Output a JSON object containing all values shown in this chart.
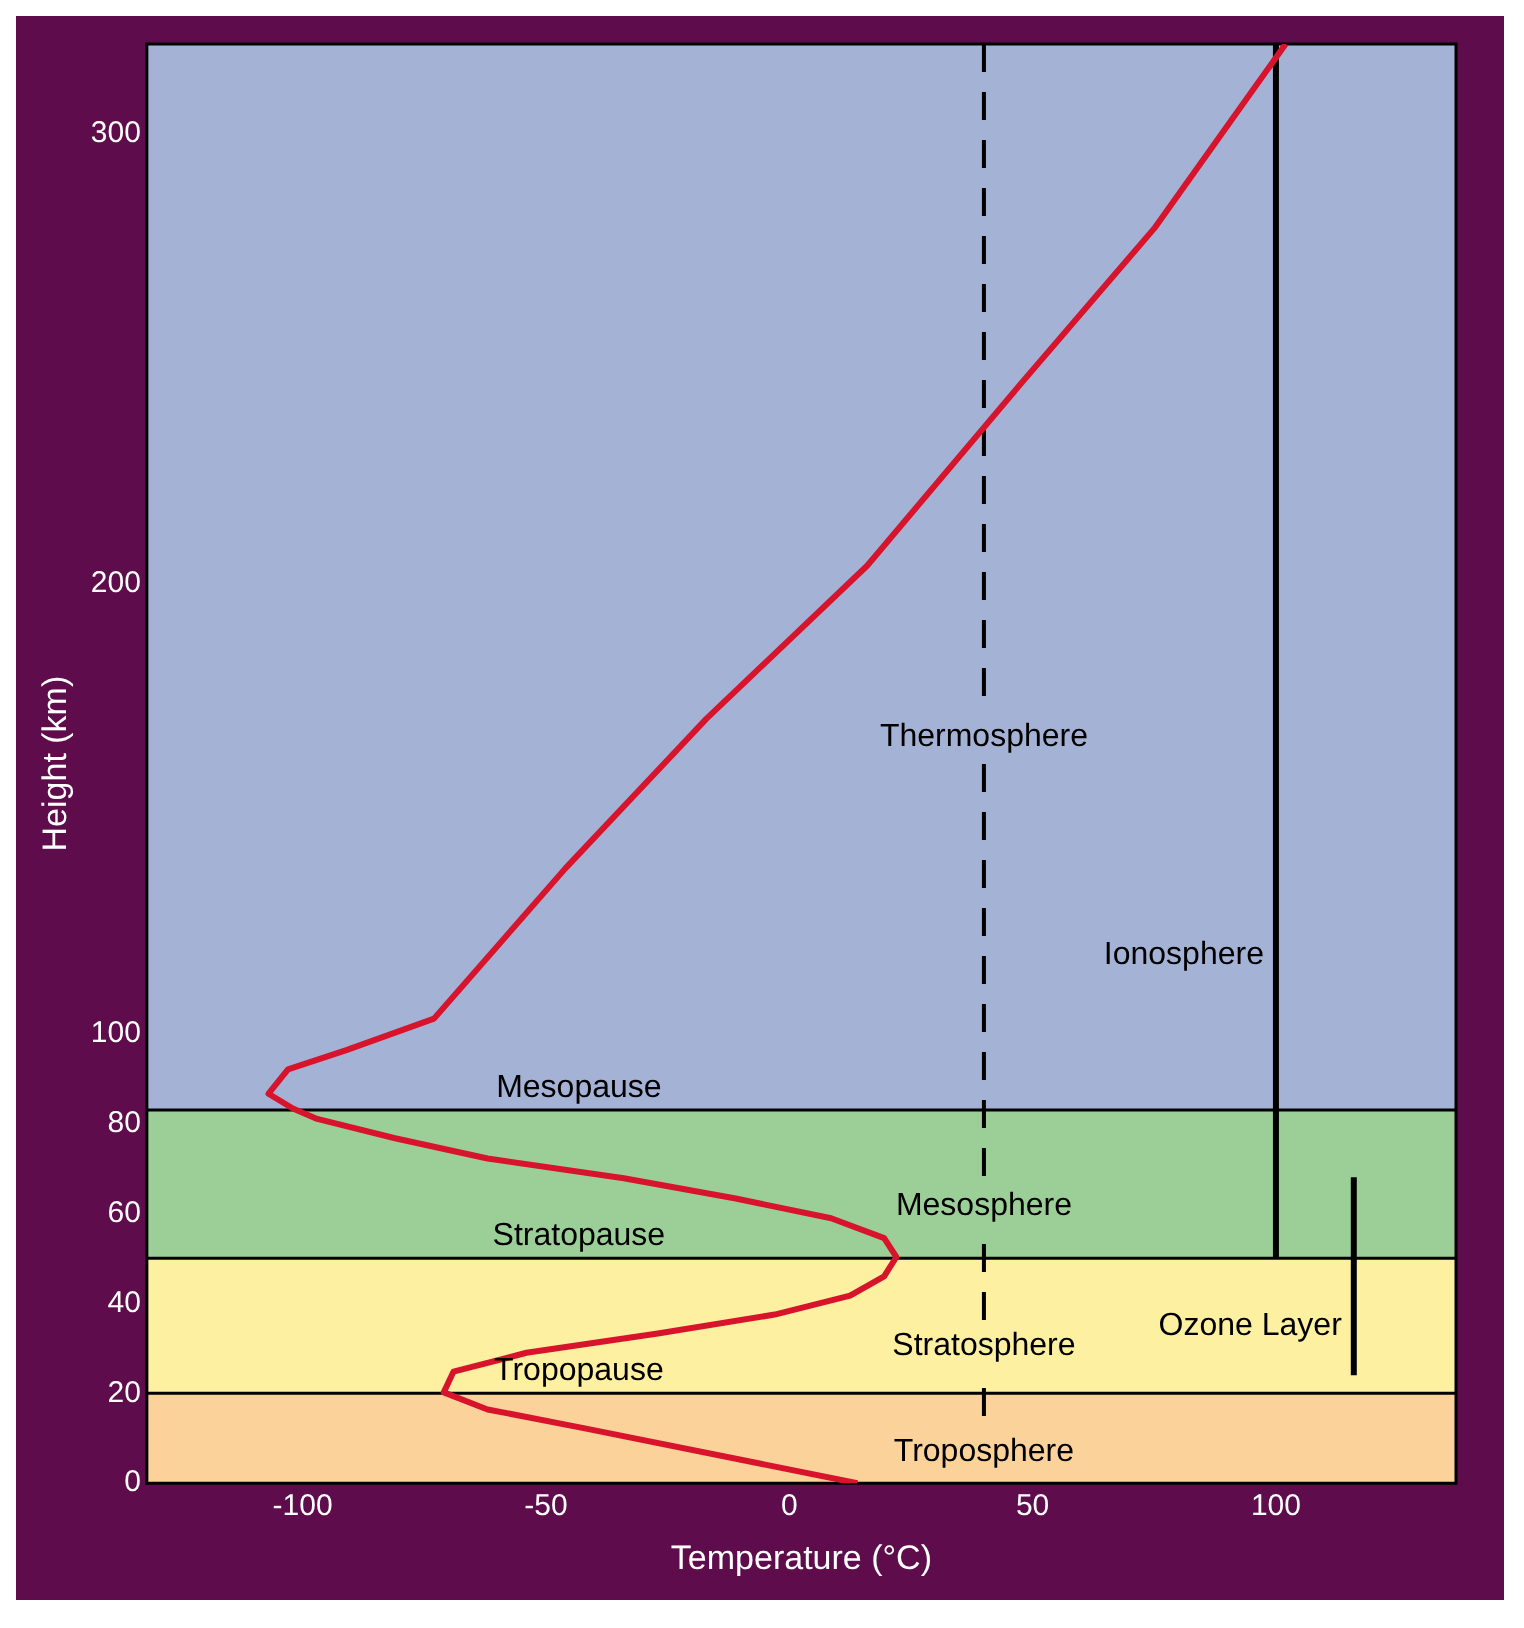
{
  "chart_data": {
    "type": "line",
    "xlabel": "Temperature (°C)",
    "ylabel": "Height (km)",
    "xlim": [
      -132,
      137
    ],
    "xticks": [
      -100,
      -50,
      0,
      50,
      100
    ],
    "ylim": [
      0,
      320
    ],
    "yticks": [
      0,
      20,
      40,
      60,
      80,
      100,
      200,
      300
    ],
    "series": [
      {
        "color": "#d7142c",
        "x": [
          14,
          -42,
          -62,
          -71,
          -69,
          -54,
          -27,
          -3,
          12.5,
          19.5,
          22,
          19.5,
          8.6,
          -11,
          -34,
          -62,
          -81,
          -97,
          -102,
          -107,
          -103,
          -91,
          -73,
          -46,
          -17,
          16,
          48,
          75,
          102
        ],
        "values": [
          0,
          12.2,
          16.4,
          20.2,
          24.8,
          29,
          33.3,
          37.5,
          41.7,
          46,
          50.3,
          54.5,
          58.9,
          63.3,
          67.8,
          72.2,
          76.7,
          81,
          83.3,
          86.6,
          92,
          96.3,
          103.3,
          136.7,
          170,
          204,
          245,
          279,
          320
        ]
      },
      {
        "name": "Ionosphere",
        "color": "#000000",
        "x": [
          100,
          100
        ],
        "values": [
          50,
          320
        ]
      },
      {
        "name": "Ozone Layer",
        "color": "#000000",
        "x": [
          116,
          116
        ],
        "values": [
          24,
          68
        ]
      }
    ],
    "bands": [
      {
        "axis": "y",
        "from": 0,
        "to": 20,
        "label": "Troposphere",
        "color": "#fcd29b"
      },
      {
        "axis": "y",
        "from": 20,
        "to": 50,
        "label": "Stratosphere",
        "color": "#fdf0a0"
      },
      {
        "axis": "y",
        "from": 50,
        "to": 83,
        "label": "Mesosphere",
        "color": "#9ccf98"
      },
      {
        "axis": "y",
        "from": 83,
        "to": 320,
        "label": "Thermosphere",
        "color": "#a4b2d6"
      }
    ],
    "ref_lines": [
      {
        "axis": "y",
        "value": 20,
        "label": "Tropopause",
        "color": "#000000"
      },
      {
        "axis": "y",
        "value": 50,
        "label": "Stratopause",
        "color": "#000000"
      },
      {
        "axis": "y",
        "value": 83,
        "label": "Mesopause",
        "color": "#000000"
      },
      {
        "axis": "x",
        "value": 40,
        "color": "#000000",
        "line_style": "dashed"
      }
    ]
  }
}
